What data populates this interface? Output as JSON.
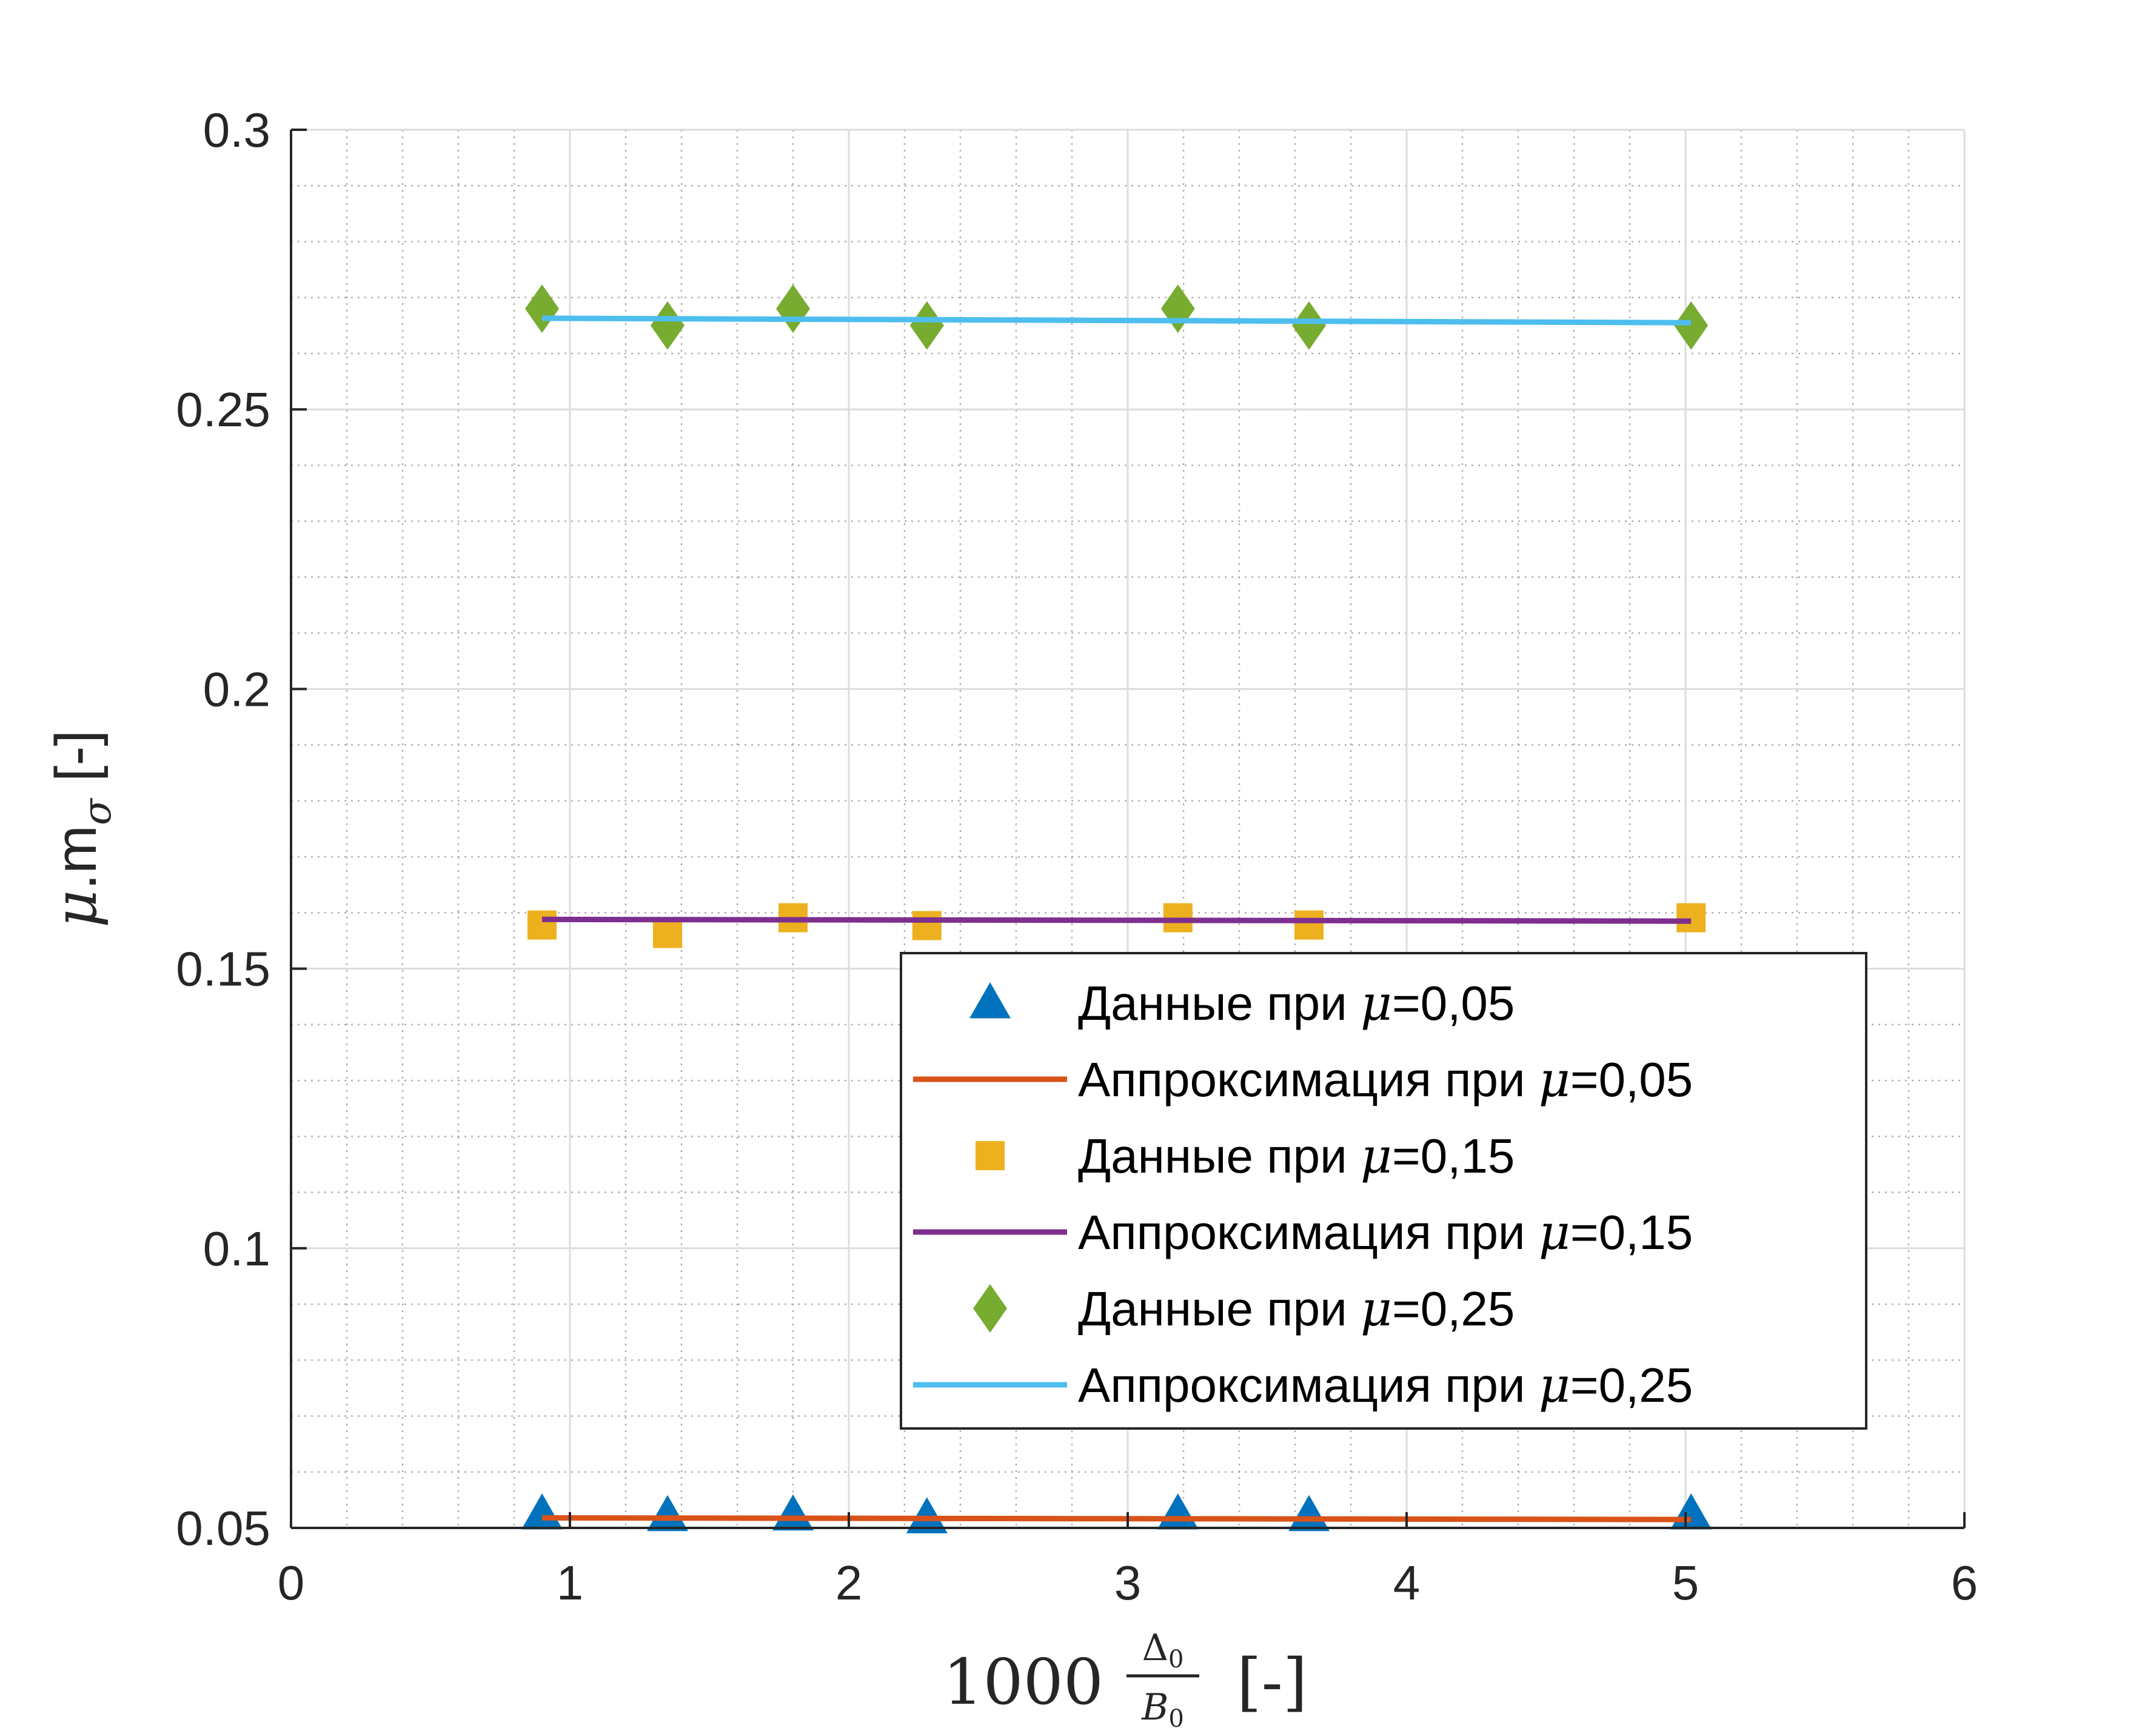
{
  "chart_data": {
    "type": "scatter",
    "xlabel": {
      "prefix": "1000",
      "numerator": "Δ",
      "numerator_sub": "0",
      "denominator": "B",
      "denominator_sub": "0",
      "unit": "[-]"
    },
    "ylabel": {
      "symbol": "μ",
      "text": ".m",
      "sub": "σ",
      "unit": "[-]"
    },
    "xlim": [
      0,
      6
    ],
    "ylim": [
      0.05,
      0.3
    ],
    "xticks": [
      0,
      1,
      2,
      3,
      4,
      5,
      6
    ],
    "xtick_labels": [
      "0",
      "1",
      "2",
      "3",
      "4",
      "5",
      "6"
    ],
    "yticks": [
      0.05,
      0.1,
      0.15,
      0.2,
      0.25,
      0.3
    ],
    "ytick_labels": [
      "0.05",
      "0.1",
      "0.15",
      "0.2",
      "0.25",
      "0.3"
    ],
    "grid": true,
    "minor_grid": true,
    "legend_placement": "lower-right",
    "series": [
      {
        "name_prefix": "Данные при ",
        "name_symbol": "μ",
        "name_suffix": "=0,05",
        "kind": "markers",
        "marker": "triangle",
        "color": "#0072BD",
        "x": [
          0.9,
          1.35,
          1.8,
          2.28,
          3.18,
          3.65,
          5.02
        ],
        "y": [
          0.0525,
          0.0522,
          0.0523,
          0.0518,
          0.0525,
          0.0522,
          0.0525
        ]
      },
      {
        "name_prefix": "Аппроксимация при ",
        "name_symbol": "μ",
        "name_suffix": "=0,05",
        "kind": "line",
        "color": "#D95319",
        "x": [
          0.9,
          5.02
        ],
        "y": [
          0.0518,
          0.0515
        ]
      },
      {
        "name_prefix": "Данные при ",
        "name_symbol": "μ",
        "name_suffix": "=0,15",
        "kind": "markers",
        "marker": "square",
        "color": "#EDB120",
        "x": [
          0.9,
          1.35,
          1.8,
          2.28,
          3.18,
          3.65,
          5.02
        ],
        "y": [
          0.1578,
          0.1563,
          0.1591,
          0.1577,
          0.1591,
          0.1578,
          0.1591
        ]
      },
      {
        "name_prefix": "Аппроксимация при ",
        "name_symbol": "μ",
        "name_suffix": "=0,15",
        "kind": "line",
        "color": "#7E2F8E",
        "x": [
          0.9,
          5.02
        ],
        "y": [
          0.1588,
          0.1585
        ]
      },
      {
        "name_prefix": "Данные при ",
        "name_symbol": "μ",
        "name_suffix": "=0,25",
        "kind": "markers",
        "marker": "diamond",
        "color": "#77AC30",
        "x": [
          0.9,
          1.35,
          1.8,
          2.28,
          3.18,
          3.65,
          5.02
        ],
        "y": [
          0.268,
          0.265,
          0.268,
          0.265,
          0.268,
          0.265,
          0.265
        ]
      },
      {
        "name_prefix": "Аппроксимация при ",
        "name_symbol": "μ",
        "name_suffix": "=0,25",
        "kind": "line",
        "color": "#4DBEEE",
        "x": [
          0.9,
          5.02
        ],
        "y": [
          0.2663,
          0.2655
        ]
      }
    ]
  }
}
